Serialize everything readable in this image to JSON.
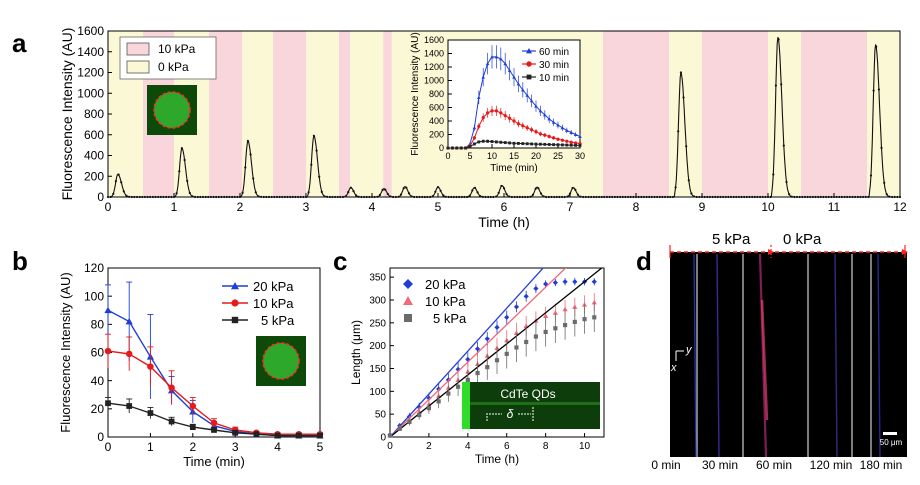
{
  "panel_labels": {
    "a": "a",
    "b": "b",
    "c": "c",
    "d": "d"
  },
  "colors": {
    "pressure_high": "#f9d5dc",
    "pressure_zero": "#fbf8d6",
    "blue": "#1f3ed8",
    "red": "#e41a1c",
    "black": "#222222",
    "pink_series": "#f06a7a",
    "gray_series": "#6b6b6b",
    "cell_green": "#1e9a1a",
    "dashed_red": "#ff2222"
  },
  "chart_data": [
    {
      "panel": "a",
      "type": "line",
      "xlabel": "Time (h)",
      "ylabel": "Fluorescence Intensity (AU)",
      "xlim": [
        0,
        12
      ],
      "ylim": [
        0,
        1600
      ],
      "xticks": [
        "0",
        "1",
        "2",
        "3",
        "4",
        "5",
        "6",
        "7",
        "8",
        "9",
        "10",
        "11",
        "12"
      ],
      "yticks": [
        "0",
        "200",
        "400",
        "600",
        "800",
        "1000",
        "1200",
        "1400",
        "1600"
      ],
      "legend": [
        {
          "label": "10 kPa",
          "color": "#f9d5dc"
        },
        {
          "label": "0 kPa",
          "color": "#fbf8d6"
        }
      ],
      "legend_position": "top-left",
      "pressure_bands": [
        {
          "start": 0,
          "end": 0.53,
          "state": "0 kPa"
        },
        {
          "start": 0.53,
          "end": 1.0,
          "state": "10 kPa"
        },
        {
          "start": 1.0,
          "end": 1.53,
          "state": "0 kPa"
        },
        {
          "start": 1.53,
          "end": 2.03,
          "state": "10 kPa"
        },
        {
          "start": 2.03,
          "end": 2.5,
          "state": "0 kPa"
        },
        {
          "start": 2.5,
          "end": 3.0,
          "state": "10 kPa"
        },
        {
          "start": 3.0,
          "end": 3.5,
          "state": "0 kPa"
        },
        {
          "start": 3.5,
          "end": 3.67,
          "state": "10 kPa"
        },
        {
          "start": 3.67,
          "end": 4.17,
          "state": "0 kPa"
        },
        {
          "start": 4.17,
          "end": 4.3,
          "state": "10 kPa"
        },
        {
          "start": 4.3,
          "end": 7.5,
          "state": "0 kPa"
        },
        {
          "start": 7.5,
          "end": 8.5,
          "state": "10 kPa"
        },
        {
          "start": 8.5,
          "end": 9.0,
          "state": "0 kPa"
        },
        {
          "start": 9.0,
          "end": 10.0,
          "state": "10 kPa"
        },
        {
          "start": 10.0,
          "end": 10.5,
          "state": "0 kPa"
        },
        {
          "start": 10.5,
          "end": 11.5,
          "state": "10 kPa"
        },
        {
          "start": 11.5,
          "end": 12.0,
          "state": "0 kPa"
        }
      ],
      "peaks": [
        {
          "t": 0.15,
          "h": 220,
          "w": 0.09
        },
        {
          "t": 1.12,
          "h": 470,
          "w": 0.09
        },
        {
          "t": 2.12,
          "h": 540,
          "w": 0.09
        },
        {
          "t": 3.12,
          "h": 590,
          "w": 0.09
        },
        {
          "t": 3.68,
          "h": 90,
          "w": 0.07
        },
        {
          "t": 4.18,
          "h": 80,
          "w": 0.07
        },
        {
          "t": 4.5,
          "h": 100,
          "w": 0.07
        },
        {
          "t": 5.0,
          "h": 95,
          "w": 0.07
        },
        {
          "t": 5.55,
          "h": 90,
          "w": 0.07
        },
        {
          "t": 5.97,
          "h": 110,
          "w": 0.07
        },
        {
          "t": 6.5,
          "h": 95,
          "w": 0.07
        },
        {
          "t": 7.05,
          "h": 90,
          "w": 0.07
        },
        {
          "t": 8.68,
          "h": 1200,
          "w": 0.1
        },
        {
          "t": 10.15,
          "h": 1540,
          "w": 0.1
        },
        {
          "t": 11.63,
          "h": 1470,
          "w": 0.1
        }
      ],
      "baseline": 0,
      "inset": {
        "type": "line",
        "xlabel": "Time (min)",
        "ylabel": "Fluorescence Intensity (AU)",
        "xlim": [
          0,
          30
        ],
        "ylim": [
          0,
          1600
        ],
        "xticks": [
          "0",
          "5",
          "10",
          "15",
          "20",
          "25",
          "30"
        ],
        "yticks": [
          "0",
          "200",
          "400",
          "600",
          "800",
          "1000",
          "1200",
          "1400",
          "1600"
        ],
        "legend_position": "top-right",
        "x": [
          0,
          1,
          2,
          3,
          4,
          5,
          6,
          7,
          8,
          9,
          10,
          11,
          12,
          13,
          14,
          15,
          16,
          17,
          18,
          19,
          20,
          21,
          22,
          23,
          24,
          25,
          26,
          27,
          28,
          29,
          30
        ],
        "series": [
          {
            "name": "60 min",
            "color": "#1f3ed8",
            "marker": "triangle",
            "values": [
              0,
              0,
              0,
              0,
              0,
              60,
              300,
              750,
              1050,
              1250,
              1350,
              1350,
              1320,
              1250,
              1150,
              1050,
              950,
              860,
              780,
              700,
              620,
              550,
              490,
              430,
              380,
              340,
              300,
              260,
              230,
              200,
              170
            ]
          },
          {
            "name": "30 min",
            "color": "#e41a1c",
            "marker": "circle",
            "values": [
              0,
              0,
              0,
              0,
              0,
              30,
              150,
              320,
              450,
              520,
              550,
              550,
              520,
              480,
              440,
              400,
              360,
              330,
              300,
              270,
              240,
              210,
              190,
              170,
              150,
              130,
              115,
              100,
              85,
              75,
              65
            ]
          },
          {
            "name": "10 min",
            "color": "#222222",
            "marker": "square",
            "values": [
              0,
              0,
              0,
              0,
              0,
              20,
              60,
              90,
              100,
              100,
              95,
              90,
              85,
              80,
              75,
              70,
              68,
              65,
              63,
              60,
              58,
              56,
              54,
              52,
              50,
              48,
              46,
              44,
              42,
              40,
              38
            ]
          }
        ]
      }
    },
    {
      "panel": "b",
      "type": "line",
      "xlabel": "Time (min)",
      "ylabel": "Fluorescence Intensity (AU)",
      "xlim": [
        0,
        5
      ],
      "ylim": [
        0,
        120
      ],
      "xticks": [
        "0",
        "1",
        "2",
        "3",
        "4",
        "5"
      ],
      "yticks": [
        "0",
        "20",
        "40",
        "60",
        "80",
        "100",
        "120"
      ],
      "legend_position": "top-right",
      "x": [
        0,
        0.5,
        1.0,
        1.5,
        2.0,
        2.5,
        3.0,
        3.5,
        4.0,
        4.5,
        5.0
      ],
      "series": [
        {
          "name": "20 kPa",
          "color": "#1f3ed8",
          "marker": "triangle",
          "values": [
            90,
            82,
            57,
            33,
            18,
            8,
            4,
            2,
            1,
            1,
            1
          ],
          "errors": [
            18,
            28,
            30,
            10,
            8,
            3,
            2,
            1,
            1,
            1,
            1
          ]
        },
        {
          "name": "10 kPa",
          "color": "#e41a1c",
          "marker": "circle",
          "values": [
            61,
            59,
            50,
            35,
            22,
            10,
            5,
            3,
            2,
            2,
            2
          ],
          "errors": [
            12,
            12,
            14,
            12,
            6,
            3,
            2,
            1,
            1,
            1,
            1
          ]
        },
        {
          "name": "5 kPa",
          "color": "#222222",
          "marker": "square",
          "values": [
            24,
            22,
            17,
            11,
            7,
            5,
            3,
            2,
            1,
            1,
            1
          ],
          "errors": [
            4,
            5,
            4,
            3,
            2,
            1,
            1,
            1,
            1,
            1,
            1
          ]
        }
      ]
    },
    {
      "panel": "c",
      "type": "scatter",
      "xlabel": "Time (h)",
      "ylabel": "Length (μm)",
      "xlim": [
        0,
        11
      ],
      "ylim": [
        0,
        370
      ],
      "xticks": [
        "0",
        "2",
        "4",
        "6",
        "8",
        "10"
      ],
      "yticks": [
        "0",
        "50",
        "100",
        "150",
        "200",
        "250",
        "300",
        "350"
      ],
      "legend_position": "top-left",
      "x": [
        0,
        0.5,
        1,
        1.5,
        2,
        2.5,
        3,
        3.5,
        4,
        4.5,
        5,
        5.5,
        6,
        6.5,
        7,
        7.5,
        8,
        8.5,
        9,
        9.5,
        10,
        10.5
      ],
      "series": [
        {
          "name": "20 kPa",
          "color": "#1f3ed8",
          "marker": "diamond",
          "values": [
            5,
            25,
            45,
            65,
            85,
            105,
            125,
            148,
            170,
            193,
            215,
            240,
            262,
            285,
            308,
            325,
            335,
            338,
            340,
            340,
            340,
            340
          ],
          "fit_slope": 47,
          "errors": [
            3,
            5,
            8,
            10,
            12,
            14,
            15,
            15,
            15,
            15,
            15,
            15,
            15,
            12,
            12,
            10,
            8,
            8,
            8,
            8,
            8,
            8
          ]
        },
        {
          "name": "10 kPa",
          "color": "#f06a7a",
          "marker": "triangle",
          "values": [
            4,
            20,
            38,
            55,
            72,
            90,
            108,
            125,
            143,
            160,
            178,
            195,
            212,
            228,
            243,
            255,
            265,
            272,
            280,
            285,
            290,
            295
          ],
          "fit_slope": 41,
          "errors": [
            3,
            5,
            8,
            10,
            12,
            15,
            18,
            20,
            20,
            22,
            22,
            22,
            22,
            22,
            22,
            20,
            20,
            20,
            20,
            20,
            20,
            20
          ]
        },
        {
          "name": "5 kPa",
          "color": "#6b6b6b",
          "marker": "square",
          "values": [
            3,
            18,
            33,
            48,
            63,
            78,
            95,
            110,
            125,
            140,
            153,
            168,
            182,
            196,
            208,
            220,
            230,
            238,
            245,
            252,
            258,
            262
          ],
          "fit_slope": 34,
          "errors": [
            3,
            5,
            8,
            10,
            12,
            15,
            18,
            20,
            22,
            25,
            28,
            30,
            32,
            32,
            32,
            32,
            32,
            32,
            32,
            32,
            32,
            32
          ]
        }
      ],
      "inset_label": "CdTe QDs",
      "inset_symbol": "δ"
    }
  ],
  "panel_d": {
    "pressure_labels": [
      "5 kPa",
      "0 kPa"
    ],
    "axis_y": "y",
    "axis_x": "x",
    "scale_bar": "50 μm",
    "time_labels": [
      "0 min",
      "30 min",
      "60 min",
      "120 min",
      "180 min"
    ]
  }
}
